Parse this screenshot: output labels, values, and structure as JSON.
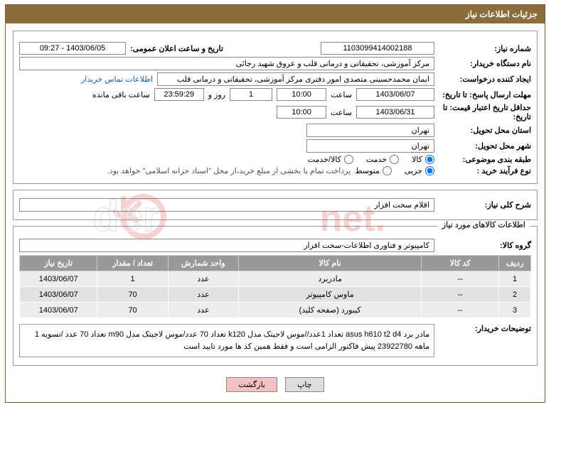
{
  "header": {
    "title": "جزئیات اطلاعات نیاز"
  },
  "fields": {
    "need_no_label": "شماره نیاز:",
    "need_no": "1103099414002188",
    "announce_label": "تاریخ و ساعت اعلان عمومی:",
    "announce": "1403/06/05 - 09:27",
    "buyer_org_label": "نام دستگاه خریدار:",
    "buyer_org": "مرکز آموزشی، تحقیقاتی و درمانی قلب و عروق شهید رجائی",
    "requester_label": "ایجاد کننده درخواست:",
    "requester": "ایمان محمدحسینی متصدی امور دفتری مرکز آموزشی، تحقیقاتی و درمانی قلب",
    "contact_link": "اطلاعات تماس خریدار",
    "deadline_send_label": "مهلت ارسال پاسخ: تا تاریخ:",
    "deadline_date": "1403/06/07",
    "time_label": "ساعت",
    "deadline_time": "10:00",
    "days": "1",
    "days_label": "روز و",
    "countdown": "23:59:29",
    "remain_label": "ساعت باقی مانده",
    "min_validity_label": "حداقل تاریخ اعتبار قیمت: تا تاریخ:",
    "min_validity_date": "1403/06/31",
    "min_validity_time": "10:00",
    "province_label": "استان محل تحویل:",
    "province": "تهران",
    "city_label": "شهر محل تحویل:",
    "city": "تهران",
    "category_label": "طبقه بندی موضوعی:",
    "radio_kala": "کالا",
    "radio_khadamat": "خدمت",
    "radio_kalakhadmat": "کالا/خدمت",
    "process_label": "نوع فرآیند خرید :",
    "radio_jozi": "جزیی",
    "radio_motavaset": "متوسط",
    "process_note": "پرداخت تمام یا بخشی از مبلغ خرید،از محل \"اسناد خزانه اسلامی\" خواهد بود.",
    "summary_label": "شرح کلی نیاز:",
    "summary": "اقلام سخت افزار",
    "items_section": "اطلاعات کالاهای مورد نیاز",
    "group_label": "گروه کالا:",
    "group": "کامپیوتر و فناوری اطلاعات-سخت افزار",
    "buyer_desc_label": "توضیحات خریدار:",
    "buyer_desc": "مادر برد asus h610 t2 d4 تعداد 1عدد//موس لاجیتک مدل k120 تعداد 70 عدد/موس لاجیتک مدل m90 تعداد 70 عدد /تسویه 1 ماهه 23922780 پیش فاکتور الزامی است و فقط همین کد ها مورد تایید است"
  },
  "table": {
    "headers": [
      "ردیف",
      "کد کالا",
      "نام کالا",
      "واحد شمارش",
      "تعداد / مقدار",
      "تاریخ نیاز"
    ],
    "rows": [
      [
        "1",
        "--",
        "مادربرد",
        "عدد",
        "1",
        "1403/06/07"
      ],
      [
        "2",
        "--",
        "ماوس کامپیوتر",
        "عدد",
        "70",
        "1403/06/07"
      ],
      [
        "3",
        "--",
        "کیبورد (صفحه کلید)",
        "عدد",
        "70",
        "1403/06/07"
      ]
    ],
    "col_widths": [
      "45px",
      "110px",
      "260px",
      "100px",
      "100px",
      "110px"
    ],
    "col_align": [
      "center",
      "center",
      "center",
      "center",
      "center",
      "center"
    ]
  },
  "buttons": {
    "print": "چاپ",
    "back": "بازگشت"
  },
  "watermark": {
    "text_outline": "ArtaTender",
    "text_suffix": ".net"
  },
  "colors": {
    "header_bg": "#8a6d3b",
    "border": "#7a5c30",
    "th_bg": "#999999",
    "row_bg1": "#ededed",
    "row_bg2": "#e2e2e2",
    "link": "#1a5fb4",
    "btn_back": "#f4c2c2",
    "wm_red": "#d93838",
    "wm_gray": "#a8a8a8"
  }
}
